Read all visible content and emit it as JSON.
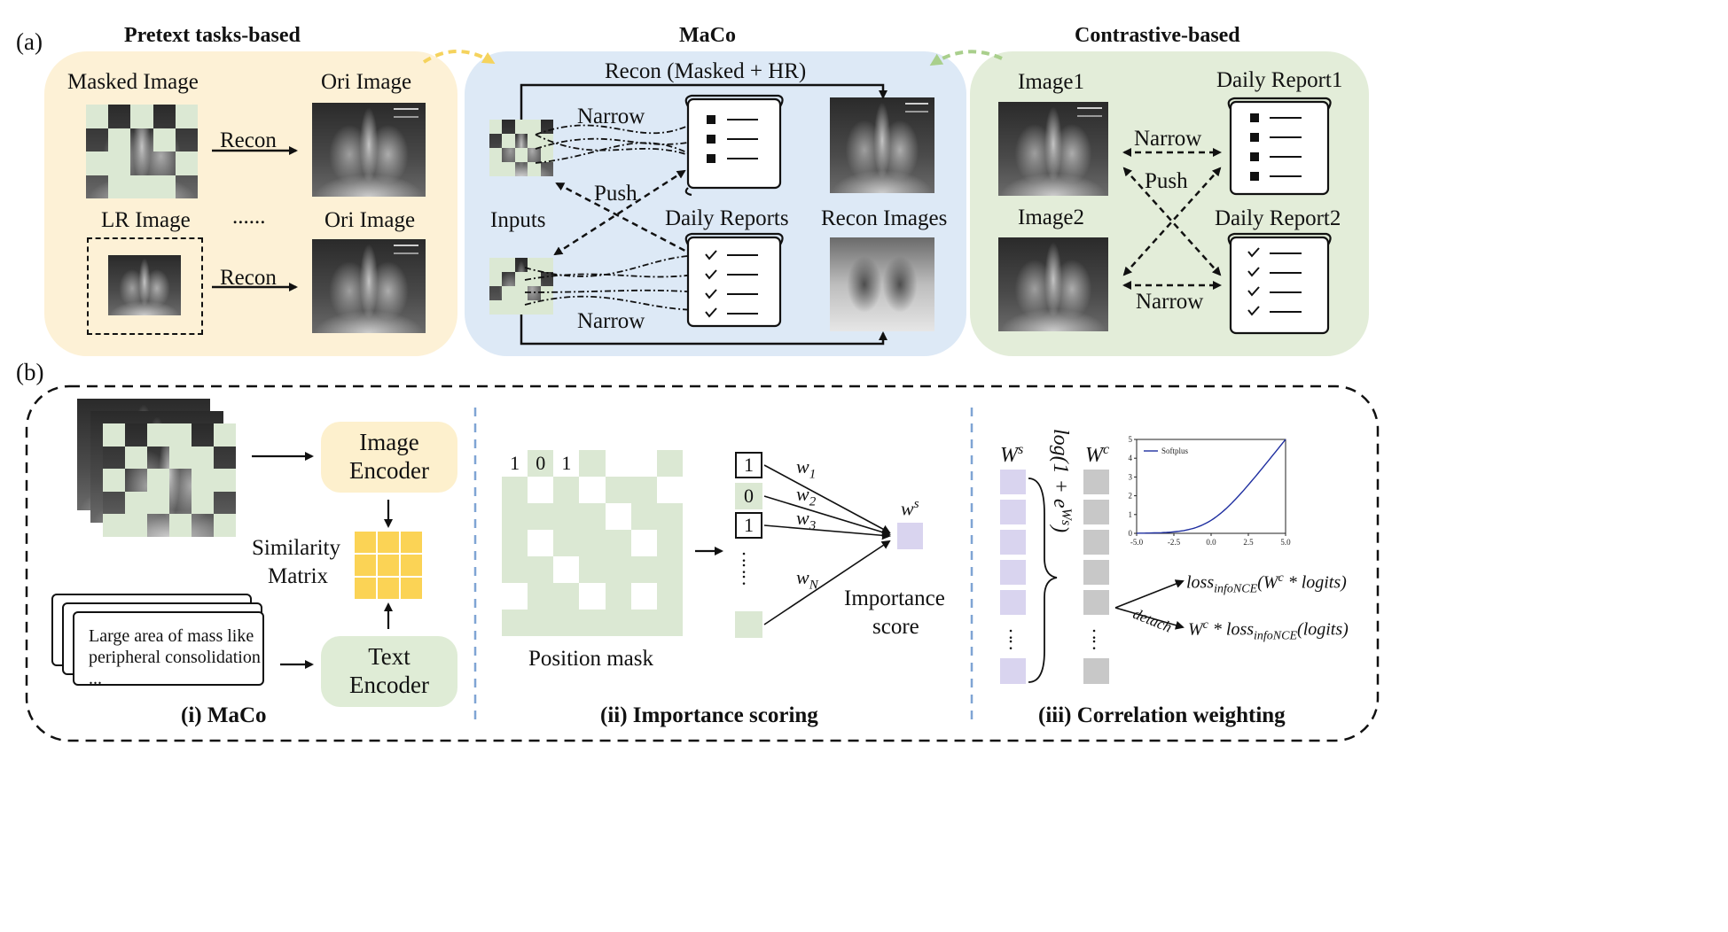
{
  "panel_labels": {
    "a": "(a)",
    "b": "(b)"
  },
  "section_a": {
    "pretext": {
      "title": "Pretext tasks-based",
      "masked_image": "Masked Image",
      "ori_image_top": "Ori Image",
      "lr_image": "LR Image",
      "ori_image_bottom": "Ori Image",
      "recon_top": "Recon",
      "recon_bottom": "Recon",
      "ellipsis": "......"
    },
    "maco": {
      "title": "MaCo",
      "recon_label": "Recon (Masked + HR)",
      "narrow_top": "Narrow",
      "push": "Push",
      "inputs": "Inputs",
      "daily_reports": "Daily Reports",
      "recon_images": "Recon Images",
      "narrow_bottom": "Narrow"
    },
    "contrastive": {
      "title": "Contrastive-based",
      "image1": "Image1",
      "daily_report1": "Daily Report1",
      "narrow_top": "Narrow",
      "push": "Push",
      "image2": "Image2",
      "daily_report2": "Daily Report2",
      "narrow_bottom": "Narrow"
    },
    "colors": {
      "pretext_bg": "#fdf1d6",
      "maco_bg": "#dde9f6",
      "contrastive_bg": "#e3edd9",
      "arrow_yellow": "#f5d35d",
      "arrow_green": "#a9cf8c"
    }
  },
  "section_b": {
    "maco": {
      "image_encoder_line1": "Image",
      "image_encoder_line2": "Encoder",
      "text_encoder_line1": "Text",
      "text_encoder_line2": "Encoder",
      "similarity_line1": "Similarity",
      "similarity_line2": "Matrix",
      "report_line1": "Large area of mass like",
      "report_line2": "peripheral consolidation",
      "report_line3": "...",
      "caption": "(i) MaCo",
      "colors": {
        "image_encoder": "#fdf0cd",
        "text_encoder": "#dfecd6",
        "matrix": "#fbd355"
      }
    },
    "importance": {
      "mask_values": [
        "1",
        "0",
        "1"
      ],
      "position_mask": "Position mask",
      "vector_values": [
        "1",
        "0",
        "1"
      ],
      "vector_ellipsis": ":",
      "weights": [
        "w",
        "w",
        "w",
        "w"
      ],
      "weight_subs": [
        "1",
        "2",
        "3",
        "N"
      ],
      "output": "w",
      "output_sup": "s",
      "importance_line1": "Importance",
      "importance_line2": "score",
      "caption": "(ii) Importance scoring",
      "colors": {
        "mask_green": "#dbe8d3",
        "score": "#d9d4ef"
      }
    },
    "correlation": {
      "ws_label": "W",
      "ws_sup": "s",
      "wc_label": "W",
      "wc_sup": "c",
      "transform": "log(1 + e",
      "transform_sup": "Ws",
      "transform_close": ")",
      "loss1": "loss",
      "loss1_sub": "infoNCE",
      "loss1_rest": "(W",
      "loss1_sup": "c",
      "loss1_end": " * logits)",
      "detach": "detach",
      "loss2_start": "W",
      "loss2_sup": "c",
      "loss2_mid": " * loss",
      "loss2_sub": "infoNCE",
      "loss2_end": "(logits)",
      "caption": "(iii) Correlation weighting",
      "colors": {
        "ws": "#d9d4ef",
        "wc": "#c8c8c8"
      }
    },
    "softplus_chart": {
      "chart_data": {
        "type": "line",
        "series": [
          {
            "name": "Softplus",
            "x": [
              -5.0,
              -4.0,
              -3.0,
              -2.0,
              -1.0,
              0.0,
              1.0,
              2.0,
              3.0,
              4.0,
              5.0
            ],
            "values": [
              0.0067,
              0.018,
              0.049,
              0.127,
              0.313,
              0.693,
              1.313,
              2.127,
              3.049,
              4.018,
              5.007
            ]
          }
        ],
        "x_ticks": [
          "-5.0",
          "-2.5",
          "0.0",
          "2.5",
          "5.0"
        ],
        "y_ticks": [
          "0",
          "1",
          "2",
          "3",
          "4",
          "5"
        ],
        "xlim": [
          -5.0,
          5.0
        ],
        "ylim": [
          0,
          5
        ],
        "legend_position": "top-left",
        "color": "#1f2fa0"
      }
    }
  }
}
